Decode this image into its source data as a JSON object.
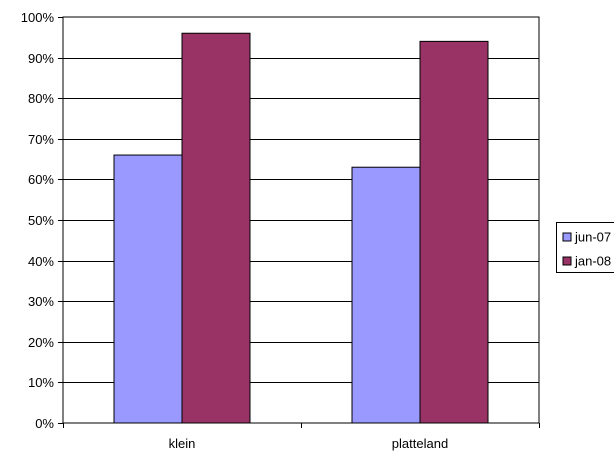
{
  "chart_data": {
    "type": "bar",
    "categories": [
      "klein",
      "platteland"
    ],
    "series": [
      {
        "name": "jun-07",
        "values": [
          0.66,
          0.63
        ],
        "color": "#9999ff"
      },
      {
        "name": "jan-08",
        "values": [
          0.96,
          0.94
        ],
        "color": "#993366"
      }
    ],
    "ylim": [
      0,
      1
    ],
    "yticks": [
      0,
      0.1,
      0.2,
      0.3,
      0.4,
      0.5,
      0.6,
      0.7,
      0.8,
      0.9,
      1.0
    ],
    "ytick_labels": [
      "0%",
      "10%",
      "20%",
      "30%",
      "40%",
      "50%",
      "60%",
      "70%",
      "80%",
      "90%",
      "100%"
    ],
    "grid": true,
    "legend_position": "right",
    "title": "",
    "xlabel": "",
    "ylabel": ""
  }
}
